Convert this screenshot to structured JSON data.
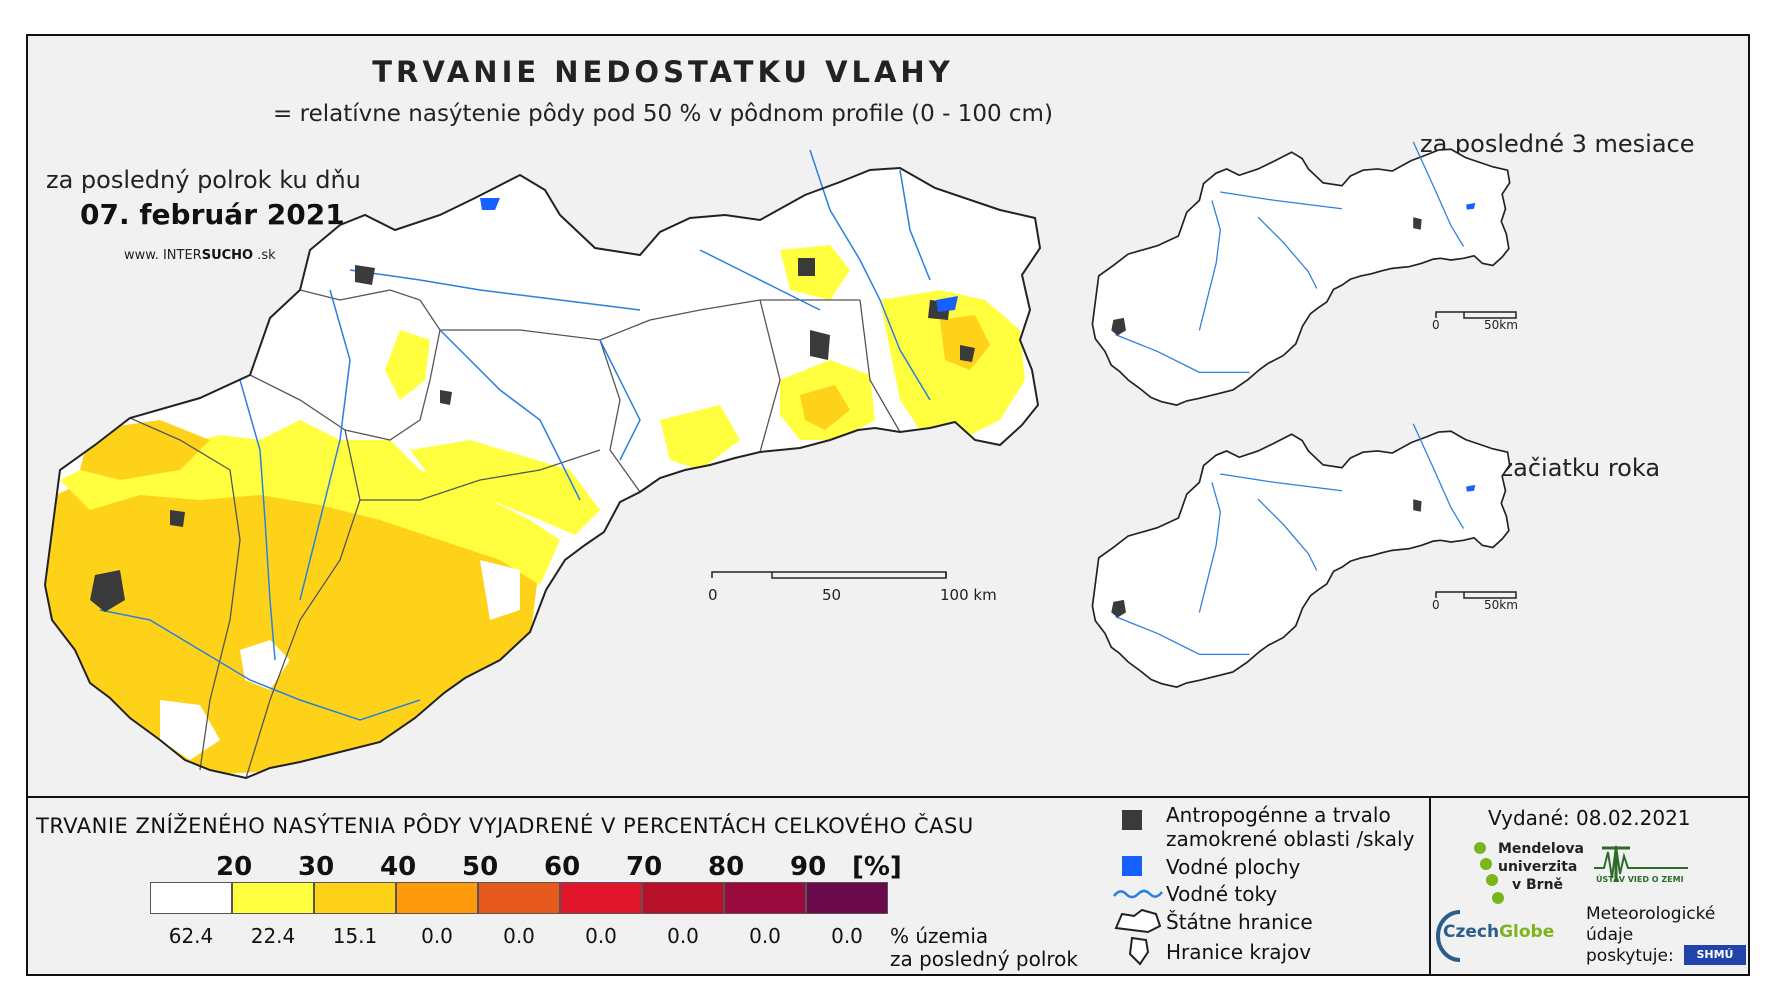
{
  "title": "TRVANIE NEDOSTATKU VLAHY",
  "subtitle": "= relatívne nasýtenie pôdy pod 50 % v pôdnom profile (0 - 100 cm)",
  "main_map": {
    "period_label": "za posledný polrok ku dňu",
    "date": "07. február 2021",
    "website": {
      "prefix": "www. INTER",
      "highlight": "SUCHO",
      "suffix": " .sk"
    },
    "scale_labels": [
      "0",
      "50",
      "100 km"
    ]
  },
  "mini_maps": [
    {
      "title": "za posledné 3 mesiace",
      "scale_labels": [
        "0",
        "50km"
      ]
    },
    {
      "title": "od začiatku roka",
      "scale_labels": [
        "0",
        "50km"
      ]
    }
  ],
  "legend": {
    "title": "TRVANIE ZNÍŽENÉHO NASÝTENIA PÔDY VYJADRENÉ V PERCENTÁCH CELKOVÉHO ČASU",
    "thresholds": [
      "20",
      "30",
      "40",
      "50",
      "60",
      "70",
      "80",
      "90"
    ],
    "unit": "[%]",
    "classes": [
      {
        "color": "#ffffff",
        "percent": "62.4"
      },
      {
        "color": "#ffff40",
        "percent": "22.4"
      },
      {
        "color": "#ffd21a",
        "percent": "15.1"
      },
      {
        "color": "#ff9a0c",
        "percent": "0.0"
      },
      {
        "color": "#e65a1e",
        "percent": "0.0"
      },
      {
        "color": "#e0152c",
        "percent": "0.0"
      },
      {
        "color": "#b8102a",
        "percent": "0.0"
      },
      {
        "color": "#9a0a3c",
        "percent": "0.0"
      },
      {
        "color": "#6a0a4a",
        "percent": "0.0"
      }
    ],
    "percent_caption_1": "% územia",
    "percent_caption_2": "za posledný polrok"
  },
  "key": {
    "urban_line1": "Antropogénne a trvalo",
    "urban_line2": "zamokrené oblasti /skaly",
    "water_bodies": "Vodné plochy",
    "rivers": "Vodné toky",
    "state_border": "Štátne hranice",
    "region_border": "Hranice krajov",
    "colors": {
      "urban": "#3a3a3a",
      "water": "#1560ff",
      "river": "#2a7fe0"
    }
  },
  "credits": {
    "issued": "Vydané: 08.02.2021",
    "mendel_lines": [
      "Mendelova",
      "univerzita",
      "v Brně"
    ],
    "czechglobe_a": "Czech",
    "czechglobe_b": "Globe",
    "uvz": "ÚSTAV VIED O ZEMI",
    "meteo_lines": [
      "Meteorologické",
      "údaje",
      "poskytuje:"
    ],
    "shmu": "SHMÚ"
  }
}
